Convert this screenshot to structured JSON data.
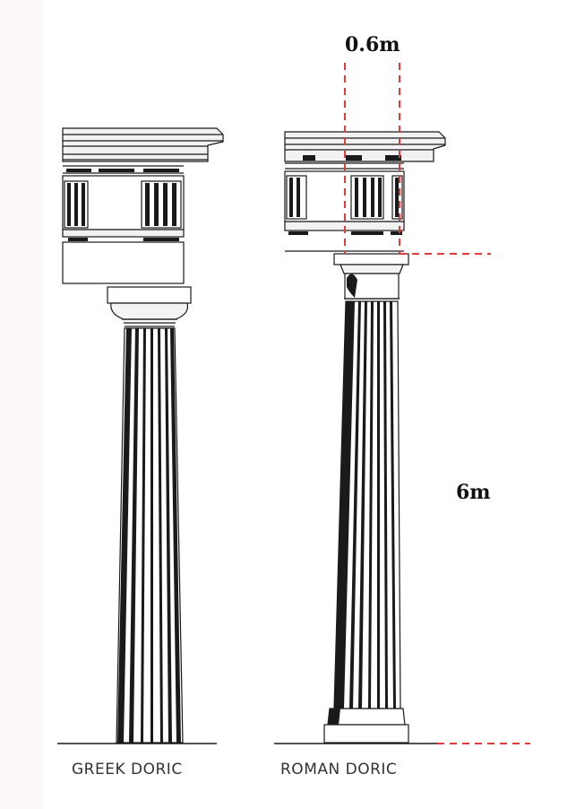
{
  "labels": {
    "width_dimension": "0.6m",
    "height_dimension": "6m",
    "greek_caption": "GREEK DORIC",
    "roman_caption": "ROMAN DORIC"
  },
  "colors": {
    "ink": "#1a1a1a",
    "dimension_line": "#e23b3b",
    "background": "#ffffff"
  }
}
